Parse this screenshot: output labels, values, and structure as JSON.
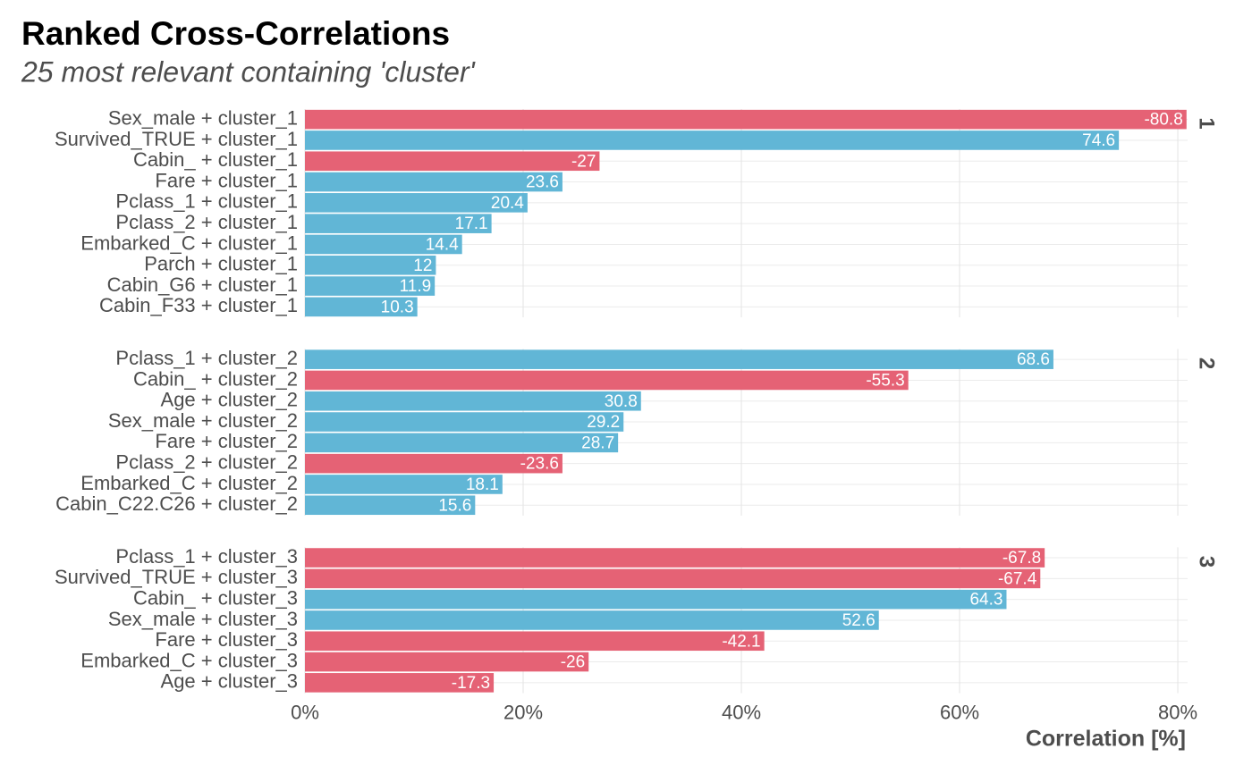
{
  "chart_data": {
    "type": "bar",
    "title": "Ranked Cross-Correlations",
    "subtitle": "25 most relevant containing 'cluster'",
    "x_label": "Correlation [%]",
    "color_positive": "#61b6d6",
    "color_negative": "#e56275",
    "grid": true,
    "xlim": [
      0,
      80.9
    ],
    "xticks": [
      {
        "value": 0,
        "label": "0%"
      },
      {
        "value": 20,
        "label": "20%"
      },
      {
        "value": 40,
        "label": "40%"
      },
      {
        "value": 60,
        "label": "60%"
      },
      {
        "value": 80,
        "label": "80%"
      }
    ],
    "facets": [
      {
        "name": "1",
        "categories": [
          "Sex_male + cluster_1",
          "Survived_TRUE + cluster_1",
          "Cabin_ + cluster_1",
          "Fare + cluster_1",
          "Pclass_1 + cluster_1",
          "Pclass_2 + cluster_1",
          "Embarked_C + cluster_1",
          "Parch + cluster_1",
          "Cabin_G6 + cluster_1",
          "Cabin_F33 + cluster_1"
        ],
        "values": [
          -80.8,
          74.6,
          -27,
          23.6,
          20.4,
          17.1,
          14.4,
          12,
          11.9,
          10.3
        ]
      },
      {
        "name": "2",
        "categories": [
          "Pclass_1 + cluster_2",
          "Cabin_ + cluster_2",
          "Age + cluster_2",
          "Sex_male + cluster_2",
          "Fare + cluster_2",
          "Pclass_2 + cluster_2",
          "Embarked_C + cluster_2",
          "Cabin_C22.C26 + cluster_2"
        ],
        "values": [
          68.6,
          -55.3,
          30.8,
          29.2,
          28.7,
          -23.6,
          18.1,
          15.6
        ]
      },
      {
        "name": "3",
        "categories": [
          "Pclass_1 + cluster_3",
          "Survived_TRUE + cluster_3",
          "Cabin_ + cluster_3",
          "Sex_male + cluster_3",
          "Fare + cluster_3",
          "Embarked_C + cluster_3",
          "Age + cluster_3"
        ],
        "values": [
          -67.8,
          -67.4,
          64.3,
          52.6,
          -42.1,
          -26,
          -17.3
        ]
      }
    ]
  }
}
